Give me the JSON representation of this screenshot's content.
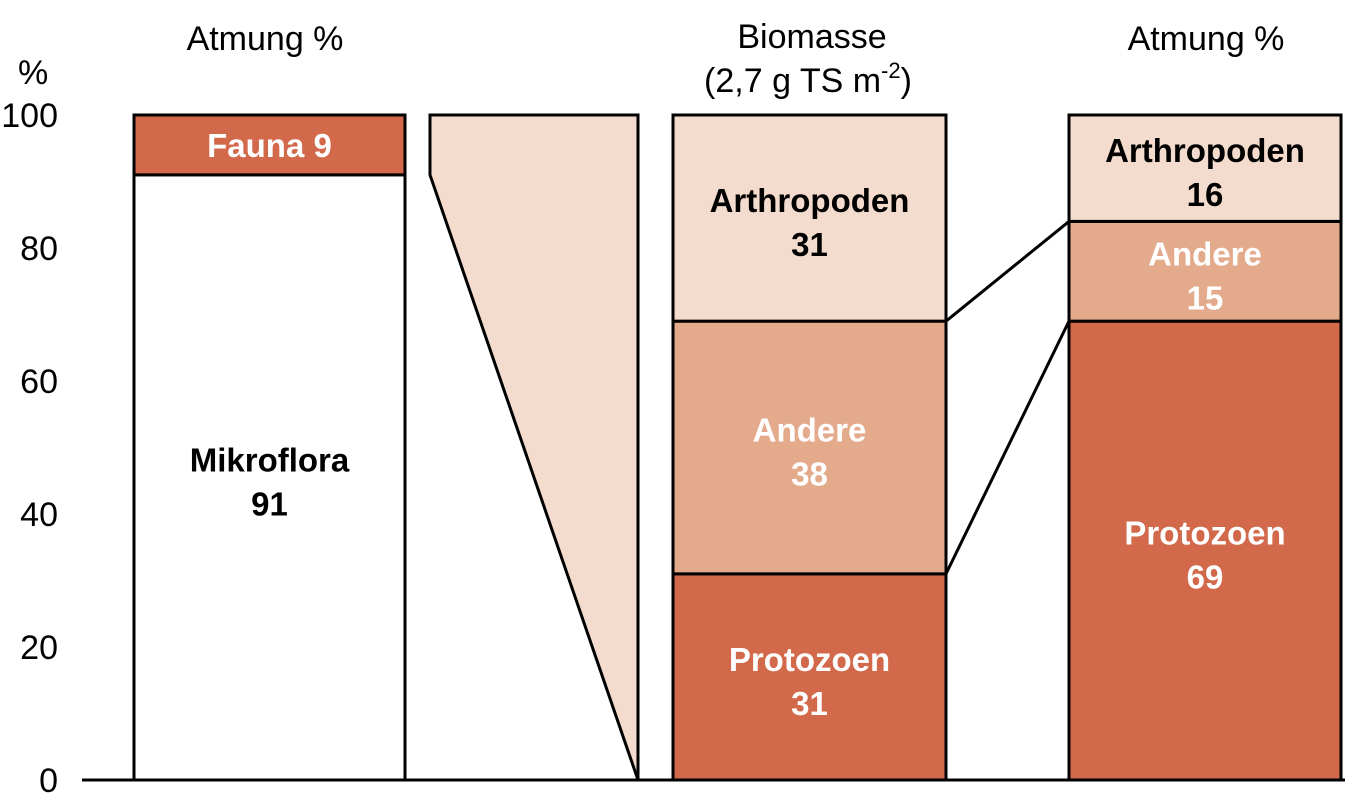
{
  "chart_data": {
    "type": "bar",
    "y_unit": "%",
    "ylim": [
      0,
      100
    ],
    "y_ticks": [
      "0",
      "20",
      "40",
      "60",
      "80",
      "100"
    ],
    "headers": {
      "left": "Atmung %",
      "middle_line1": "Biomasse",
      "middle_line2_prefix": "(2,7 g TS m",
      "middle_line2_sup": "-2",
      "middle_line2_suffix": ")",
      "right": "Atmung %"
    },
    "bars": [
      {
        "segments": [
          {
            "label": "Mikroflora",
            "value": 91,
            "value_text": "91",
            "color": "#ffffff",
            "text_color": "#000000"
          },
          {
            "label": "Fauna 9",
            "value": 9,
            "value_text": "",
            "color": "#d2694a",
            "text_color": "#ffffff"
          }
        ]
      },
      {
        "segments": [
          {
            "label": "Protozoen",
            "value": 31,
            "value_text": "31",
            "color": "#d2694a",
            "text_color": "#ffffff"
          },
          {
            "label": "Andere",
            "value": 38,
            "value_text": "38",
            "color": "#e4aa8c",
            "text_color": "#ffffff"
          },
          {
            "label": "Arthropoden",
            "value": 31,
            "value_text": "31",
            "color": "#f3dccd",
            "text_color": "#000000"
          }
        ]
      },
      {
        "segments": [
          {
            "label": "Protozoen",
            "value": 69,
            "value_text": "69",
            "color": "#d2694a",
            "text_color": "#ffffff"
          },
          {
            "label": "Andere",
            "value": 15,
            "value_text": "15",
            "color": "#e4aa8c",
            "text_color": "#ffffff"
          },
          {
            "label": "Arthropoden",
            "value": 16,
            "value_text": "16",
            "color": "#f3dccd",
            "text_color": "#000000"
          }
        ]
      }
    ],
    "colors": {
      "funnel": "#f3dccd",
      "stroke": "#000000"
    }
  }
}
